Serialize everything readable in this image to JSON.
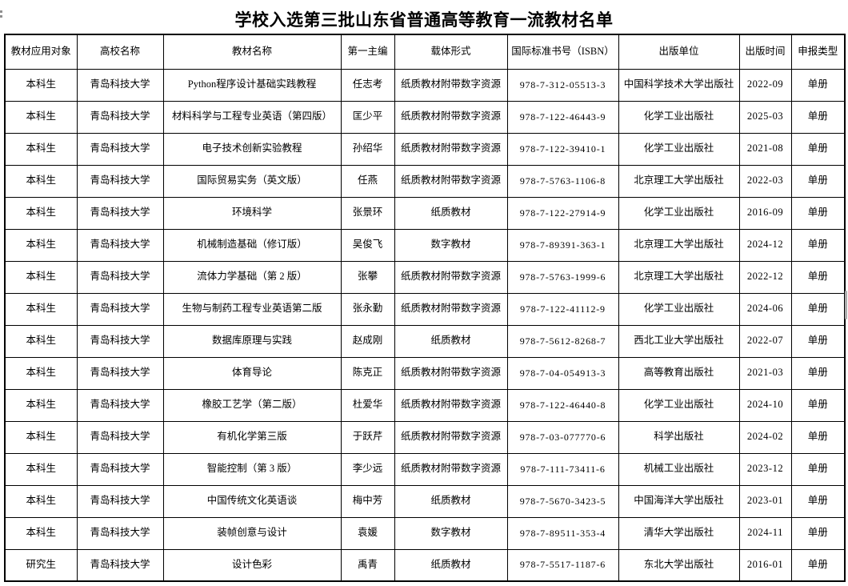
{
  "page": {
    "title": "学校入选第三批山东省普通高等教育一流教材名单"
  },
  "table": {
    "headers": [
      "教材应用对象",
      "高校名称",
      "教材名称",
      "第一主编",
      "载体形式",
      "国际标准书号（ISBN）",
      "出版单位",
      "出版时间",
      "申报类型"
    ],
    "rows": [
      {
        "audience": "本科生",
        "university": "青岛科技大学",
        "title": "Python程序设计基础实践教程",
        "editor": "任志考",
        "format": "纸质教材附带数字资源",
        "isbn": "978-7-312-05513-3",
        "publisher": "中国科学技术大学出版社",
        "date": "2022-09",
        "type": "单册"
      },
      {
        "audience": "本科生",
        "university": "青岛科技大学",
        "title": "材料科学与工程专业英语（第四版）",
        "editor": "匡少平",
        "format": "纸质教材附带数字资源",
        "isbn": "978-7-122-46443-9",
        "publisher": "化学工业出版社",
        "date": "2025-03",
        "type": "单册"
      },
      {
        "audience": "本科生",
        "university": "青岛科技大学",
        "title": "电子技术创新实验教程",
        "editor": "孙绍华",
        "format": "纸质教材附带数字资源",
        "isbn": "978-7-122-39410-1",
        "publisher": "化学工业出版社",
        "date": "2021-08",
        "type": "单册"
      },
      {
        "audience": "本科生",
        "university": "青岛科技大学",
        "title": "国际贸易实务（英文版）",
        "editor": "任燕",
        "format": "纸质教材附带数字资源",
        "isbn": "978-7-5763-1106-8",
        "publisher": "北京理工大学出版社",
        "date": "2022-03",
        "type": "单册"
      },
      {
        "audience": "本科生",
        "university": "青岛科技大学",
        "title": "环境科学",
        "editor": "张景环",
        "format": "纸质教材",
        "isbn": "978-7-122-27914-9",
        "publisher": "化学工业出版社",
        "date": "2016-09",
        "type": "单册"
      },
      {
        "audience": "本科生",
        "university": "青岛科技大学",
        "title": "机械制造基础（修订版）",
        "editor": "吴俊飞",
        "format": "数字教材",
        "isbn": "978-7-89391-363-1",
        "publisher": "北京理工大学出版社",
        "date": "2024-12",
        "type": "单册"
      },
      {
        "audience": "本科生",
        "university": "青岛科技大学",
        "title": "流体力学基础（第 2 版）",
        "editor": "张攀",
        "format": "纸质教材附带数字资源",
        "isbn": "978-7-5763-1999-6",
        "publisher": "北京理工大学出版社",
        "date": "2022-12",
        "type": "单册"
      },
      {
        "audience": "本科生",
        "university": "青岛科技大学",
        "title": "生物与制药工程专业英语第二版",
        "editor": "张永勤",
        "format": "纸质教材附带数字资源",
        "isbn": "978-7-122-41112-9",
        "publisher": "化学工业出版社",
        "date": "2024-06",
        "type": "单册"
      },
      {
        "audience": "本科生",
        "university": "青岛科技大学",
        "title": "数据库原理与实践",
        "editor": "赵成刚",
        "format": "纸质教材",
        "isbn": "978-7-5612-8268-7",
        "publisher": "西北工业大学出版社",
        "date": "2022-07",
        "type": "单册"
      },
      {
        "audience": "本科生",
        "university": "青岛科技大学",
        "title": "体育导论",
        "editor": "陈克正",
        "format": "纸质教材附带数字资源",
        "isbn": "978-7-04-054913-3",
        "publisher": "高等教育出版社",
        "date": "2021-03",
        "type": "单册"
      },
      {
        "audience": "本科生",
        "university": "青岛科技大学",
        "title": "橡胶工艺学（第二版）",
        "editor": "杜爱华",
        "format": "纸质教材附带数字资源",
        "isbn": "978-7-122-46440-8",
        "publisher": "化学工业出版社",
        "date": "2024-10",
        "type": "单册"
      },
      {
        "audience": "本科生",
        "university": "青岛科技大学",
        "title": "有机化学第三版",
        "editor": "于跃芹",
        "format": "纸质教材附带数字资源",
        "isbn": "978-7-03-077770-6",
        "publisher": "科学出版社",
        "date": "2024-02",
        "type": "单册"
      },
      {
        "audience": "本科生",
        "university": "青岛科技大学",
        "title": "智能控制（第 3 版）",
        "editor": "李少远",
        "format": "纸质教材附带数字资源",
        "isbn": "978-7-111-73411-6",
        "publisher": "机械工业出版社",
        "date": "2023-12",
        "type": "单册"
      },
      {
        "audience": "本科生",
        "university": "青岛科技大学",
        "title": "中国传统文化英语谈",
        "editor": "梅中芳",
        "format": "纸质教材",
        "isbn": "978-7-5670-3423-5",
        "publisher": "中国海洋大学出版社",
        "date": "2023-01",
        "type": "单册"
      },
      {
        "audience": "本科生",
        "university": "青岛科技大学",
        "title": "装帧创意与设计",
        "editor": "袁媛",
        "format": "数字教材",
        "isbn": "978-7-89511-353-4",
        "publisher": "清华大学出版社",
        "date": "2024-11",
        "type": "单册"
      },
      {
        "audience": "研究生",
        "university": "青岛科技大学",
        "title": "设计色彩",
        "editor": "禹青",
        "format": "纸质教材",
        "isbn": "978-7-5517-1187-6",
        "publisher": "东北大学出版社",
        "date": "2016-01",
        "type": "单册"
      }
    ]
  }
}
